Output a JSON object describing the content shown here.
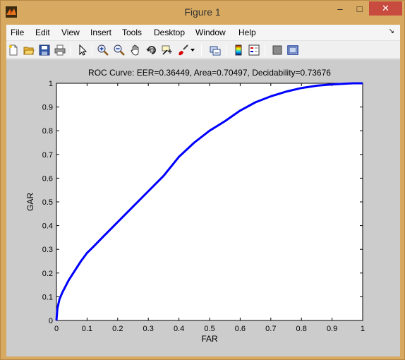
{
  "window": {
    "title": "Figure 1",
    "minimize_symbol": "–",
    "maximize_symbol": "□",
    "close_symbol": "✕",
    "app_icon": "matlab-icon"
  },
  "menu": {
    "items": [
      "File",
      "Edit",
      "View",
      "Insert",
      "Tools",
      "Desktop",
      "Window",
      "Help"
    ],
    "dock_arrow": "↘"
  },
  "toolbar": {
    "buttons": [
      "new-figure-icon",
      "open-file-icon",
      "save-icon",
      "print-icon",
      "edit-plot-arrow-icon",
      "zoom-in-icon",
      "zoom-out-icon",
      "pan-hand-icon",
      "rotate-3d-icon",
      "data-cursor-icon",
      "brush-icon",
      "brush-dropdown-icon",
      "link-plot-icon",
      "insert-colorbar-icon",
      "insert-legend-icon",
      "hide-plot-tools-icon",
      "show-plot-tools-icon"
    ]
  },
  "colors": {
    "curve": "#0000ff",
    "figure_bg": "#cccccc",
    "window_frame": "#d8a960",
    "close_button": "#c74b3f"
  },
  "chart_data": {
    "type": "line",
    "title": "ROC Curve:     EER=0.36449,    Area=0.70497,    Decidability=0.73676",
    "xlabel": "FAR",
    "ylabel": "GAR",
    "xlim": [
      0,
      1
    ],
    "ylim": [
      0,
      1
    ],
    "xticks": [
      "0",
      "0.1",
      "0.2",
      "0.3",
      "0.4",
      "0.5",
      "0.6",
      "0.7",
      "0.8",
      "0.9",
      "1"
    ],
    "yticks": [
      "0",
      "0.1",
      "0.2",
      "0.3",
      "0.4",
      "0.5",
      "0.6",
      "0.7",
      "0.8",
      "0.9",
      "1"
    ],
    "grid": false,
    "series": [
      {
        "x": [
          0,
          0.003,
          0.01,
          0.02,
          0.04,
          0.06,
          0.08,
          0.1,
          0.12,
          0.15,
          0.2,
          0.25,
          0.3,
          0.35,
          0.4,
          0.45,
          0.5,
          0.55,
          0.6,
          0.65,
          0.7,
          0.75,
          0.8,
          0.85,
          0.9,
          0.95,
          0.97,
          1.0
        ],
        "y": [
          0,
          0.05,
          0.09,
          0.12,
          0.17,
          0.21,
          0.25,
          0.285,
          0.31,
          0.35,
          0.415,
          0.48,
          0.545,
          0.61,
          0.69,
          0.75,
          0.8,
          0.84,
          0.885,
          0.92,
          0.945,
          0.965,
          0.98,
          0.99,
          0.995,
          0.999,
          1.0,
          1.0
        ]
      }
    ]
  }
}
